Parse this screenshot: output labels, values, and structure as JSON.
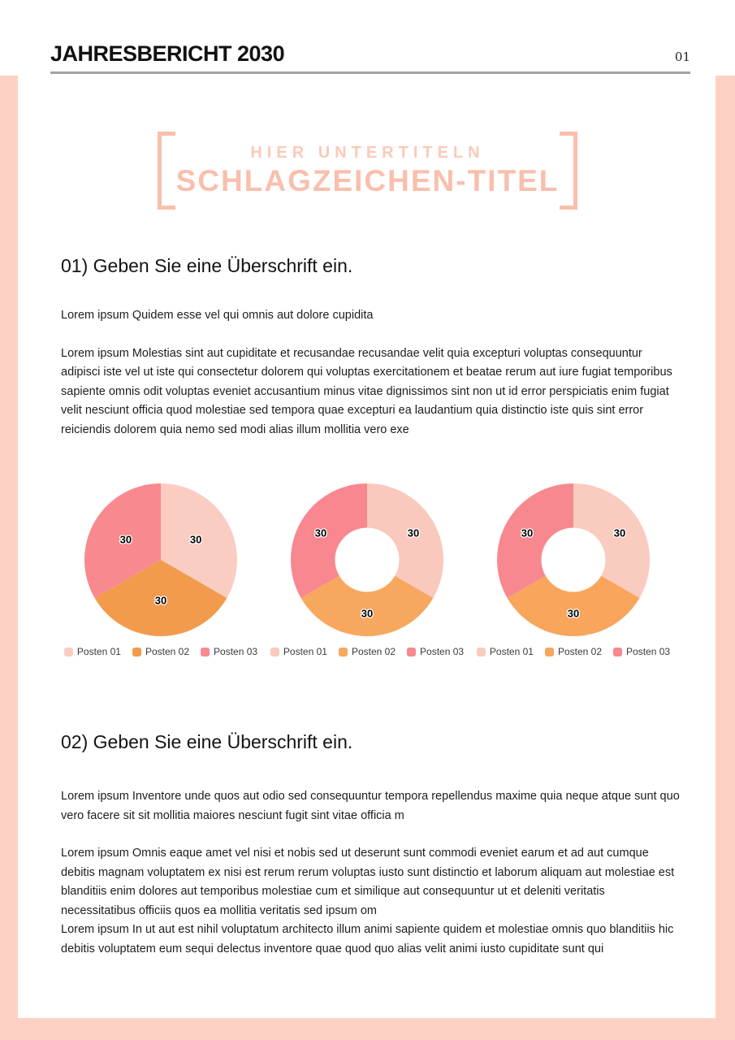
{
  "header": {
    "title": "JAHRESBERICHT 2030",
    "page_number": "01"
  },
  "hero": {
    "subtitle": "HIER UNTERTITELN",
    "title": "SCHLAGZEICHEN-TITEL"
  },
  "sections": [
    {
      "heading": "01) Geben Sie eine Überschrift ein.",
      "paragraphs": [
        "Lorem ipsum Quidem esse vel qui omnis aut dolore cupidita",
        "Lorem ipsum Molestias sint aut cupiditate et recusandae recusandae velit quia excepturi voluptas consequuntur adipisci iste vel ut iste qui consectetur dolorem qui voluptas exercitationem et beatae rerum aut iure fugiat temporibus sapiente omnis odit voluptas eveniet accusantium minus vitae dignissimos sint non ut id error perspiciatis enim fugiat velit nesciunt officia quod molestiae sed tempora quae excepturi ea laudantium quia distinctio iste quis sint error reiciendis dolorem quia nemo sed modi alias illum mollitia vero exe"
      ]
    },
    {
      "heading": "02) Geben Sie eine Überschrift ein.",
      "paragraphs": [
        "Lorem ipsum Inventore unde quos aut odio sed consequuntur tempora repellendus maxime quia neque atque sunt quo vero facere sit sit mollitia maiores nesciunt fugit sint vitae officia m",
        "Lorem ipsum Omnis eaque amet vel nisi et nobis sed ut deserunt sunt commodi eveniet earum et ad aut cumque debitis magnam voluptatem ex nisi est rerum rerum voluptas iusto sunt distinctio et laborum aliquam aut molestiae est blanditiis enim dolores aut temporibus molestiae cum et similique aut consequuntur ut et deleniti veritatis necessitatibus officiis quos ea mollitia veritatis sed ipsum om",
        "Lorem ipsum In ut aut est nihil voluptatum architecto illum animi sapiente quidem et molestiae omnis quo blanditiis hic debitis voluptatem eum sequi delectus inventore quae quod quo alias velit animi iusto cupiditate sunt qui"
      ]
    }
  ],
  "chart_data": [
    {
      "type": "pie",
      "categories": [
        "Posten 01",
        "Posten 02",
        "Posten 03"
      ],
      "values": [
        30,
        30,
        30
      ],
      "data_labels": [
        "30",
        "30",
        "30"
      ],
      "colors": [
        "#fbcdc2",
        "#f39b4c",
        "#f8898f"
      ],
      "inner_radius_ratio": 0,
      "label_radius_ratio": 0.53,
      "legend_position": "bottom",
      "start_angle_deg": 0,
      "direction": "clockwise"
    },
    {
      "type": "pie",
      "categories": [
        "Posten 01",
        "Posten 02",
        "Posten 03"
      ],
      "values": [
        30,
        30,
        30
      ],
      "data_labels": [
        "30",
        "30",
        "30"
      ],
      "colors": [
        "#f9c9bd",
        "#f8a75e",
        "#f8878f"
      ],
      "inner_radius_ratio": 0.42,
      "label_radius_ratio": 0.7,
      "legend_position": "bottom",
      "start_angle_deg": 0,
      "direction": "clockwise"
    },
    {
      "type": "pie",
      "categories": [
        "Posten 01",
        "Posten 02",
        "Posten 03"
      ],
      "values": [
        30,
        30,
        30
      ],
      "data_labels": [
        "30",
        "30",
        "30"
      ],
      "colors": [
        "#facbbf",
        "#f9a55c",
        "#f8888f"
      ],
      "inner_radius_ratio": 0.42,
      "label_radius_ratio": 0.7,
      "legend_position": "bottom",
      "start_angle_deg": 0,
      "direction": "clockwise"
    }
  ],
  "theme": {
    "frame_peach": "#fcd1c3",
    "title_peach": "#f9bfad",
    "subtitle_peach": "#fbc9b8",
    "rule_gray": "#a3a3a3",
    "body_text": "#1d1d1d",
    "slice_label_text": "#000000"
  }
}
